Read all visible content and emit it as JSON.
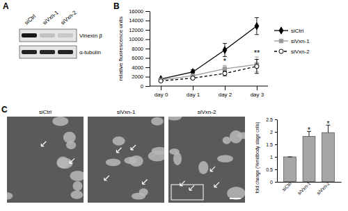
{
  "chart_data": [
    {
      "type": "line",
      "categories": [
        "day 0",
        "day 1",
        "day 2",
        "day 3"
      ],
      "ylabel": "relative fluorescence units",
      "ylim": [
        0,
        16000
      ],
      "yticks": [
        0,
        2000,
        4000,
        6000,
        8000,
        10000,
        12000,
        14000,
        16000
      ],
      "legend": "right",
      "series": [
        {
          "name": "siCtrl",
          "color": "#000000",
          "marker": "diamond",
          "line_style": "solid",
          "values": [
            1500,
            3000,
            7700,
            12800
          ],
          "errors": [
            200,
            500,
            1400,
            1800
          ]
        },
        {
          "name": "siVxn-1",
          "color": "#999999",
          "marker": "square",
          "line_style": "solid",
          "values": [
            1300,
            2200,
            3700,
            4600
          ],
          "errors": [
            200,
            400,
            700,
            1600
          ]
        },
        {
          "name": "siVxn-2",
          "color": "#000000",
          "marker": "circle-open",
          "line_style": "dashed",
          "values": [
            1100,
            1700,
            2700,
            4200
          ],
          "errors": [
            150,
            300,
            500,
            1500
          ]
        }
      ],
      "annotations": [
        {
          "text": "*",
          "x": "day 2"
        },
        {
          "text": "**",
          "x": "day 3"
        }
      ]
    },
    {
      "type": "bar",
      "categories": [
        "siCtrl",
        "siVxn-1",
        "siVxn-2"
      ],
      "values": [
        1,
        1.82,
        1.97
      ],
      "errors": [
        0,
        0.2,
        0.3
      ],
      "color": "#a6a6a6",
      "ylabel": "fold change (%midbody stage cells)",
      "ylim": [
        0,
        2.5
      ],
      "yticks": [
        0,
        0.5,
        1,
        1.5,
        2,
        2.5
      ],
      "annotations": [
        {
          "text": "*",
          "x": "siVxn-1"
        },
        {
          "text": "*",
          "x": "siVxn-2"
        }
      ]
    }
  ],
  "figure": {
    "panel_labels": [
      "A",
      "B",
      "C"
    ],
    "blot": {
      "lanes": [
        "siCtrl",
        "siVxn-1",
        "siVxn-2"
      ],
      "rows": [
        "Vinexin β",
        "α-tubulin"
      ]
    },
    "micrographs": {
      "labels": [
        "siCtrl",
        "siVxn-1",
        "siVxn-2"
      ]
    }
  }
}
